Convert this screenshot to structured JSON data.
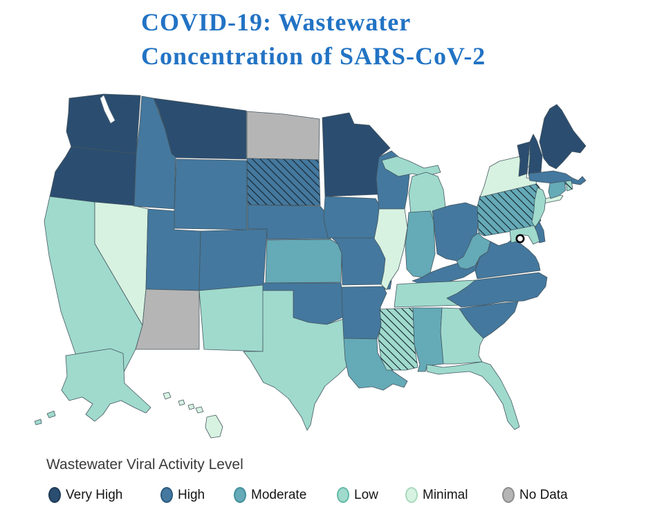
{
  "title": {
    "line1": "COVID-19: Wastewater",
    "line2": "Concentration of SARS-CoV-2",
    "color": "#2273c4"
  },
  "legend": {
    "heading": "Wastewater Viral Activity Level",
    "items": [
      {
        "label": "Very High",
        "color": "#2b4d70",
        "border": "#1c3a57"
      },
      {
        "label": "High",
        "color": "#44789e",
        "border": "#2d5a7e"
      },
      {
        "label": "Moderate",
        "color": "#65aab7",
        "border": "#418e9c"
      },
      {
        "label": "Low",
        "color": "#9fdacd",
        "border": "#62b8a6"
      },
      {
        "label": "Minimal",
        "color": "#d7f2e1",
        "border": "#a8d8bd"
      },
      {
        "label": "No Data",
        "color": "#b5b5b5",
        "border": "#8c8c8c"
      }
    ]
  },
  "map": {
    "border_color": "#44565f",
    "hatch_color": "#16242e",
    "levels": {
      "very-high": "#2b4d70",
      "high": "#44789e",
      "moderate": "#65aab7",
      "low": "#9fdacd",
      "minimal": "#d7f2e1",
      "no-data": "#b5b5b5"
    },
    "dc_marker": {
      "name": "District of Columbia"
    },
    "states": [
      {
        "id": "CA",
        "name": "California",
        "level": "low",
        "hatched": false
      },
      {
        "id": "OR",
        "name": "Oregon",
        "level": "very-high",
        "hatched": false
      },
      {
        "id": "WA",
        "name": "Washington",
        "level": "very-high",
        "hatched": false
      },
      {
        "id": "NV",
        "name": "Nevada",
        "level": "minimal",
        "hatched": false
      },
      {
        "id": "ID",
        "name": "Idaho",
        "level": "high",
        "hatched": false
      },
      {
        "id": "MT",
        "name": "Montana",
        "level": "very-high",
        "hatched": false
      },
      {
        "id": "WY",
        "name": "Wyoming",
        "level": "high",
        "hatched": false
      },
      {
        "id": "UT",
        "name": "Utah",
        "level": "high",
        "hatched": false
      },
      {
        "id": "CO",
        "name": "Colorado",
        "level": "high",
        "hatched": false
      },
      {
        "id": "AZ",
        "name": "Arizona",
        "level": "no-data",
        "hatched": false
      },
      {
        "id": "NM",
        "name": "New Mexico",
        "level": "low",
        "hatched": false
      },
      {
        "id": "ND",
        "name": "North Dakota",
        "level": "no-data",
        "hatched": false
      },
      {
        "id": "SD",
        "name": "South Dakota",
        "level": "high",
        "hatched": true
      },
      {
        "id": "NE",
        "name": "Nebraska",
        "level": "high",
        "hatched": false
      },
      {
        "id": "KS",
        "name": "Kansas",
        "level": "moderate",
        "hatched": false
      },
      {
        "id": "OK",
        "name": "Oklahoma",
        "level": "high",
        "hatched": false
      },
      {
        "id": "TX",
        "name": "Texas",
        "level": "low",
        "hatched": false
      },
      {
        "id": "MN",
        "name": "Minnesota",
        "level": "very-high",
        "hatched": false
      },
      {
        "id": "IA",
        "name": "Iowa",
        "level": "high",
        "hatched": false
      },
      {
        "id": "MO",
        "name": "Missouri",
        "level": "high",
        "hatched": false
      },
      {
        "id": "AR",
        "name": "Arkansas",
        "level": "high",
        "hatched": false
      },
      {
        "id": "LA",
        "name": "Louisiana",
        "level": "moderate",
        "hatched": false
      },
      {
        "id": "WI",
        "name": "Wisconsin",
        "level": "high",
        "hatched": false
      },
      {
        "id": "IL",
        "name": "Illinois",
        "level": "minimal",
        "hatched": false
      },
      {
        "id": "MI",
        "name": "Michigan",
        "level": "low",
        "hatched": false
      },
      {
        "id": "IN",
        "name": "Indiana",
        "level": "moderate",
        "hatched": false
      },
      {
        "id": "OH",
        "name": "Ohio",
        "level": "high",
        "hatched": false
      },
      {
        "id": "KY",
        "name": "Kentucky",
        "level": "high",
        "hatched": false
      },
      {
        "id": "TN",
        "name": "Tennessee",
        "level": "low",
        "hatched": false
      },
      {
        "id": "MS",
        "name": "Mississippi",
        "level": "low",
        "hatched": true
      },
      {
        "id": "AL",
        "name": "Alabama",
        "level": "moderate",
        "hatched": false
      },
      {
        "id": "GA",
        "name": "Georgia",
        "level": "low",
        "hatched": false
      },
      {
        "id": "FL",
        "name": "Florida",
        "level": "low",
        "hatched": false
      },
      {
        "id": "WV",
        "name": "West Virginia",
        "level": "moderate",
        "hatched": false
      },
      {
        "id": "VA",
        "name": "Virginia",
        "level": "high",
        "hatched": false
      },
      {
        "id": "NC",
        "name": "North Carolina",
        "level": "high",
        "hatched": false
      },
      {
        "id": "SC",
        "name": "South Carolina",
        "level": "high",
        "hatched": false
      },
      {
        "id": "PA",
        "name": "Pennsylvania",
        "level": "moderate",
        "hatched": true
      },
      {
        "id": "NY",
        "name": "New York",
        "level": "minimal",
        "hatched": false
      },
      {
        "id": "NJ",
        "name": "New Jersey",
        "level": "low",
        "hatched": false
      },
      {
        "id": "VT",
        "name": "Vermont",
        "level": "very-high",
        "hatched": false
      },
      {
        "id": "NH",
        "name": "New Hampshire",
        "level": "very-high",
        "hatched": false
      },
      {
        "id": "ME",
        "name": "Maine",
        "level": "very-high",
        "hatched": false
      },
      {
        "id": "MA",
        "name": "Massachusetts",
        "level": "high",
        "hatched": false
      },
      {
        "id": "CT",
        "name": "Connecticut",
        "level": "moderate",
        "hatched": false
      },
      {
        "id": "RI",
        "name": "Rhode Island",
        "level": "low",
        "hatched": true
      },
      {
        "id": "DE",
        "name": "Delaware",
        "level": "high",
        "hatched": false
      },
      {
        "id": "MD",
        "name": "Maryland",
        "level": "low",
        "hatched": false
      },
      {
        "id": "AK",
        "name": "Alaska",
        "level": "low",
        "hatched": false
      },
      {
        "id": "HI",
        "name": "Hawaii",
        "level": "minimal",
        "hatched": false
      }
    ]
  },
  "chart_data": {
    "type": "choropleth",
    "title": "COVID-19: Wastewater Concentration of SARS-CoV-2",
    "legend_title": "Wastewater Viral Activity Level",
    "categories": [
      "Very High",
      "High",
      "Moderate",
      "Low",
      "Minimal",
      "No Data"
    ],
    "state_levels": {
      "WA": "Very High",
      "OR": "Very High",
      "MT": "Very High",
      "MN": "Very High",
      "ME": "Very High",
      "NH": "Very High",
      "VT": "Very High",
      "ID": "High",
      "WY": "High",
      "UT": "High",
      "CO": "High",
      "NE": "High",
      "IA": "High",
      "MO": "High",
      "WI": "High",
      "OK": "High",
      "AR": "High",
      "KY": "High",
      "OH": "High",
      "VA": "High",
      "NC": "High",
      "SC": "High",
      "MA": "High",
      "DE": "High",
      "SD": "High (hatched)",
      "KS": "Moderate",
      "IN": "Moderate",
      "LA": "Moderate",
      "AL": "Moderate",
      "WV": "Moderate",
      "CT": "Moderate",
      "PA": "Moderate (hatched)",
      "CA": "Low",
      "NM": "Low",
      "TX": "Low",
      "TN": "Low",
      "MI": "Low",
      "GA": "Low",
      "FL": "Low",
      "NJ": "Low",
      "MD": "Low",
      "AK": "Low",
      "MS": "Low (hatched)",
      "RI": "Low (hatched)",
      "NV": "Minimal",
      "NY": "Minimal",
      "IL": "Minimal",
      "HI": "Minimal",
      "ND": "No Data",
      "AZ": "No Data"
    }
  }
}
